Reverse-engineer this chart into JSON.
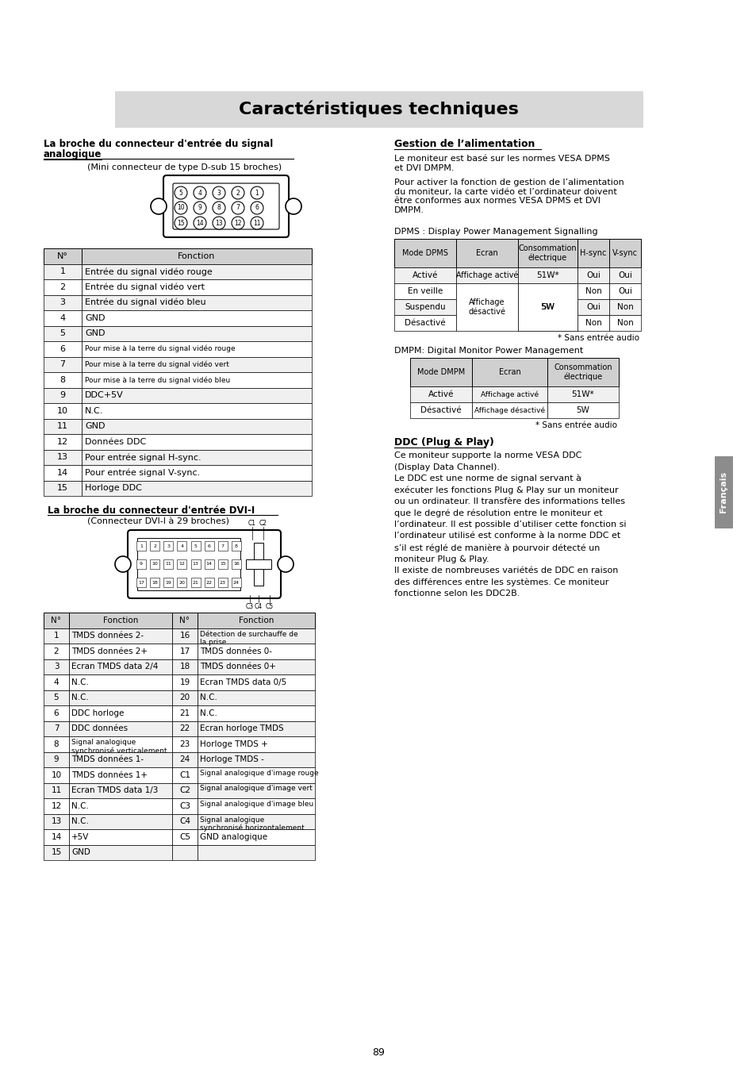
{
  "title": "Caractéristiques techniques",
  "title_bg": "#d8d8d8",
  "page_bg": "#ffffff",
  "page_number": "89",
  "analog_table_rows": [
    [
      "1",
      "Entrée du signal vidéo rouge",
      "normal"
    ],
    [
      "2",
      "Entrée du signal vidéo vert",
      "normal"
    ],
    [
      "3",
      "Entrée du signal vidéo bleu",
      "normal"
    ],
    [
      "4",
      "GND",
      "normal"
    ],
    [
      "5",
      "GND",
      "normal"
    ],
    [
      "6",
      "Pour mise à la terre du signal vidéo rouge",
      "small"
    ],
    [
      "7",
      "Pour mise à la terre du signal vidéo vert",
      "small"
    ],
    [
      "8",
      "Pour mise à la terre du signal vidéo bleu",
      "small"
    ],
    [
      "9",
      "DDC+5V",
      "normal"
    ],
    [
      "10",
      "N.C.",
      "normal"
    ],
    [
      "11",
      "GND",
      "normal"
    ],
    [
      "12",
      "Données DDC",
      "normal"
    ],
    [
      "13",
      "Pour entrée signal H-sync.",
      "normal"
    ],
    [
      "14",
      "Pour entrée signal V-sync.",
      "normal"
    ],
    [
      "15",
      "Horloge DDC",
      "normal"
    ]
  ],
  "dvi_table_rows": [
    [
      "1",
      "TMDS données 2-",
      "16",
      "Détection de surchauffe de\nla prise"
    ],
    [
      "2",
      "TMDS données 2+",
      "17",
      "TMDS données 0-"
    ],
    [
      "3",
      "Ecran TMDS data 2/4",
      "18",
      "TMDS données 0+"
    ],
    [
      "4",
      "N.C.",
      "19",
      "Ecran TMDS data 0/5"
    ],
    [
      "5",
      "N.C.",
      "20",
      "N.C."
    ],
    [
      "6",
      "DDC horloge",
      "21",
      "N.C."
    ],
    [
      "7",
      "DDC données",
      "22",
      "Ecran horloge TMDS"
    ],
    [
      "8",
      "Signal analogique\nsynchronisé verticalement",
      "23",
      "Horloge TMDS +"
    ],
    [
      "9",
      "TMDS données 1-",
      "24",
      "Horloge TMDS -"
    ],
    [
      "10",
      "TMDS données 1+",
      "C1",
      "Signal analogique d'image rouge"
    ],
    [
      "11",
      "Ecran TMDS data 1/3",
      "C2",
      "Signal analogique d'image vert"
    ],
    [
      "12",
      "N.C.",
      "C3",
      "Signal analogique d'image bleu"
    ],
    [
      "13",
      "N.C.",
      "C4",
      "Signal analogique\nsynchronisé horizontalement"
    ],
    [
      "14",
      "+5V",
      "C5",
      "GND analogique"
    ],
    [
      "15",
      "GND",
      "",
      ""
    ]
  ],
  "dpms_note": "* Sans entrée audio",
  "dmpm_text": "DMPM: Digital Monitor Power Management",
  "dmpm_note": "* Sans entrée audio",
  "section4_title": "DDC (Plug & Play)",
  "section4_text_lines": [
    "Ce moniteur supporte la norme VESA DDC",
    "(Display Data Channel).",
    "Le DDC est une norme de signal servant à",
    "exécuter les fonctions Plug & Play sur un moniteur",
    "ou un ordinateur. Il transfère des informations telles",
    "que le degré de résolution entre le moniteur et",
    "l’ordinateur. Il est possible d’utiliser cette fonction si",
    "l’ordinateur utilisé est conforme à la norme DDC et",
    "s’il est réglé de manière à pourvoir détecté un",
    "moniteur Plug & Play.",
    "Il existe de nombreuses variétés de DDC en raison",
    "des différences entre les systèmes. Ce moniteur",
    "fonctionne selon les DDC2B."
  ],
  "sidebar_text": "Français",
  "sidebar_bg": "#8c8c8c"
}
